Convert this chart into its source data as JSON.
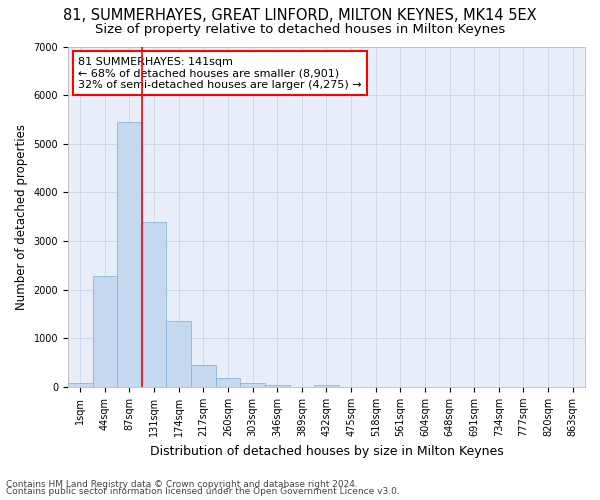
{
  "title": "81, SUMMERHAYES, GREAT LINFORD, MILTON KEYNES, MK14 5EX",
  "subtitle": "Size of property relative to detached houses in Milton Keynes",
  "xlabel": "Distribution of detached houses by size in Milton Keynes",
  "ylabel": "Number of detached properties",
  "footnote1": "Contains HM Land Registry data © Crown copyright and database right 2024.",
  "footnote2": "Contains public sector information licensed under the Open Government Licence v3.0.",
  "bar_labels": [
    "1sqm",
    "44sqm",
    "87sqm",
    "131sqm",
    "174sqm",
    "217sqm",
    "260sqm",
    "303sqm",
    "346sqm",
    "389sqm",
    "432sqm",
    "475sqm",
    "518sqm",
    "561sqm",
    "604sqm",
    "648sqm",
    "691sqm",
    "734sqm",
    "777sqm",
    "820sqm",
    "863sqm"
  ],
  "bar_values": [
    80,
    2280,
    5450,
    3400,
    1350,
    450,
    175,
    80,
    50,
    0,
    50,
    0,
    0,
    0,
    0,
    0,
    0,
    0,
    0,
    0,
    0
  ],
  "bar_color": "#c5d8ef",
  "bar_edgecolor": "#7badd4",
  "vline_x_index": 3,
  "vline_color": "red",
  "annotation_text": "81 SUMMERHAYES: 141sqm\n← 68% of detached houses are smaller (8,901)\n32% of semi-detached houses are larger (4,275) →",
  "annotation_box_color": "white",
  "annotation_box_edgecolor": "red",
  "ylim": [
    0,
    7000
  ],
  "yticks": [
    0,
    1000,
    2000,
    3000,
    4000,
    5000,
    6000,
    7000
  ],
  "grid_color": "#c8d4e8",
  "background_color": "#e8eef8",
  "title_fontsize": 10.5,
  "subtitle_fontsize": 9.5,
  "xlabel_fontsize": 9,
  "ylabel_fontsize": 8.5,
  "tick_fontsize": 7,
  "annotation_fontsize": 8,
  "footnote_fontsize": 6.5
}
